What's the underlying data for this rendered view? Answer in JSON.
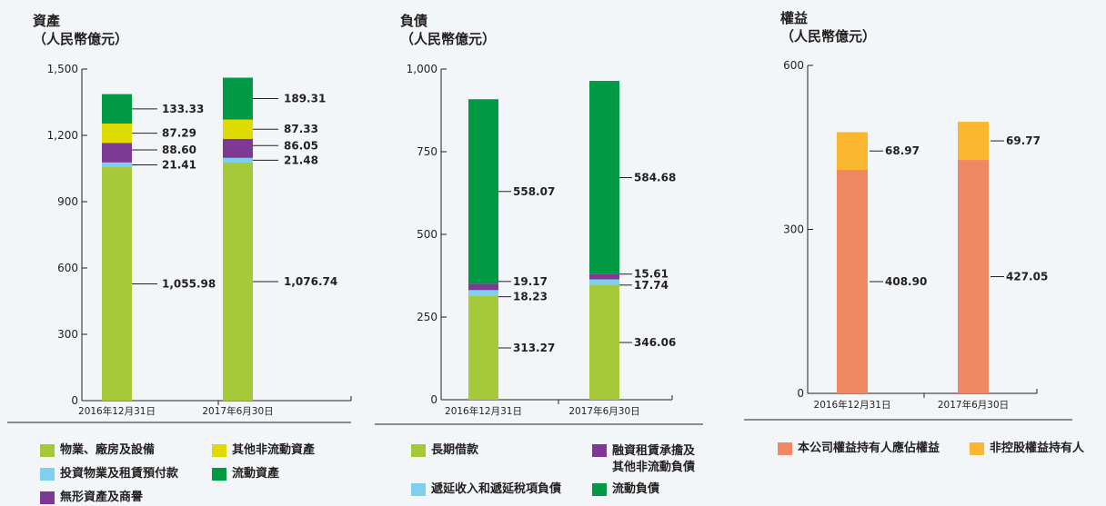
{
  "colors": {
    "ppe": "#a6c93a",
    "invest_prop": "#7fd0ec",
    "intangible": "#7e3995",
    "other_noncurrent": "#dedb00",
    "current_assets": "#009a44",
    "equity_owners": "#ef8863",
    "nci": "#fbb72f",
    "axis": "#231f20"
  },
  "charts": {
    "assets": {
      "title": "資產",
      "unit": "（人民幣億元）"
    },
    "liabilities": {
      "title": "負債",
      "unit": "（人民幣億元）"
    },
    "equity": {
      "title": "權益",
      "unit": "（人民幣億元）"
    }
  },
  "legends": {
    "assets": [
      {
        "label": "物業、廠房及設備",
        "color": "#a6c93a"
      },
      {
        "label": "其他非流動資產",
        "color": "#dedb00"
      },
      {
        "label": "投資物業及租賃預付款",
        "color": "#7fd0ec"
      },
      {
        "label": "流動資產",
        "color": "#009a44"
      },
      {
        "label": "無形資產及商譽",
        "color": "#7e3995"
      }
    ],
    "liabilities": [
      {
        "label": "長期借款",
        "color": "#a6c93a"
      },
      {
        "label": "融資租賃承擔及\n其他非流動負債",
        "color": "#7e3995"
      },
      {
        "label": "遞延收入和遞延稅項負債",
        "color": "#7fd0ec"
      },
      {
        "label": "流動負債",
        "color": "#009a44"
      }
    ],
    "equity": [
      {
        "label": "本公司權益持有人應佔權益",
        "color": "#ef8863"
      },
      {
        "label": "非控股權益持有人",
        "color": "#fbb72f"
      }
    ]
  },
  "chart_data": [
    {
      "type": "bar",
      "stacked": true,
      "title": "資產",
      "ylabel": "（人民幣億元）",
      "categories": [
        "2016年12月31日",
        "2017年6月30日"
      ],
      "ylim": [
        0,
        1500
      ],
      "yticks": [
        0,
        300,
        600,
        900,
        1200,
        1500
      ],
      "ytick_labels": [
        "0",
        "300",
        "600",
        "900",
        "1,200",
        "1,500"
      ],
      "series": [
        {
          "name": "物業、廠房及設備",
          "color": "#a6c93a",
          "values": [
            1055.98,
            1076.74
          ],
          "labels": [
            "1,055.98",
            "1,076.74"
          ]
        },
        {
          "name": "投資物業及租賃預付款",
          "color": "#7fd0ec",
          "values": [
            21.41,
            21.48
          ],
          "labels": [
            "21.41",
            "21.48"
          ]
        },
        {
          "name": "無形資產及商譽",
          "color": "#7e3995",
          "values": [
            88.6,
            86.05
          ],
          "labels": [
            "88.60",
            "86.05"
          ]
        },
        {
          "name": "其他非流動資產",
          "color": "#dedb00",
          "values": [
            87.29,
            87.33
          ],
          "labels": [
            "87.29",
            "87.33"
          ]
        },
        {
          "name": "流動資產",
          "color": "#009a44",
          "values": [
            133.33,
            189.31
          ],
          "labels": [
            "133.33",
            "189.31"
          ]
        }
      ]
    },
    {
      "type": "bar",
      "stacked": true,
      "title": "負債",
      "ylabel": "（人民幣億元）",
      "categories": [
        "2016年12月31日",
        "2017年6月30日"
      ],
      "ylim": [
        0,
        1000
      ],
      "yticks": [
        0,
        250,
        500,
        750,
        1000
      ],
      "ytick_labels": [
        "0",
        "250",
        "500",
        "750",
        "1,000"
      ],
      "series": [
        {
          "name": "長期借款",
          "color": "#a6c93a",
          "values": [
            313.27,
            346.06
          ],
          "labels": [
            "313.27",
            "346.06"
          ]
        },
        {
          "name": "遞延收入和遞延稅項負債",
          "color": "#7fd0ec",
          "values": [
            18.23,
            17.74
          ],
          "labels": [
            "18.23",
            "17.74"
          ]
        },
        {
          "name": "融資租賃承擔及其他非流動負債",
          "color": "#7e3995",
          "values": [
            19.17,
            15.61
          ],
          "labels": [
            "19.17",
            "15.61"
          ]
        },
        {
          "name": "流動負債",
          "color": "#009a44",
          "values": [
            558.07,
            584.68
          ],
          "labels": [
            "558.07",
            "584.68"
          ]
        }
      ]
    },
    {
      "type": "bar",
      "stacked": true,
      "title": "權益",
      "ylabel": "（人民幣億元）",
      "categories": [
        "2016年12月31日",
        "2017年6月30日"
      ],
      "ylim": [
        0,
        600
      ],
      "yticks": [
        0,
        300,
        600
      ],
      "ytick_labels": [
        "0",
        "300",
        "600"
      ],
      "series": [
        {
          "name": "本公司權益持有人應佔權益",
          "color": "#ef8863",
          "values": [
            408.9,
            427.05
          ],
          "labels": [
            "408.90",
            "427.05"
          ]
        },
        {
          "name": "非控股權益持有人",
          "color": "#fbb72f",
          "values": [
            68.97,
            69.77
          ],
          "labels": [
            "68.97",
            "69.77"
          ]
        }
      ]
    }
  ]
}
